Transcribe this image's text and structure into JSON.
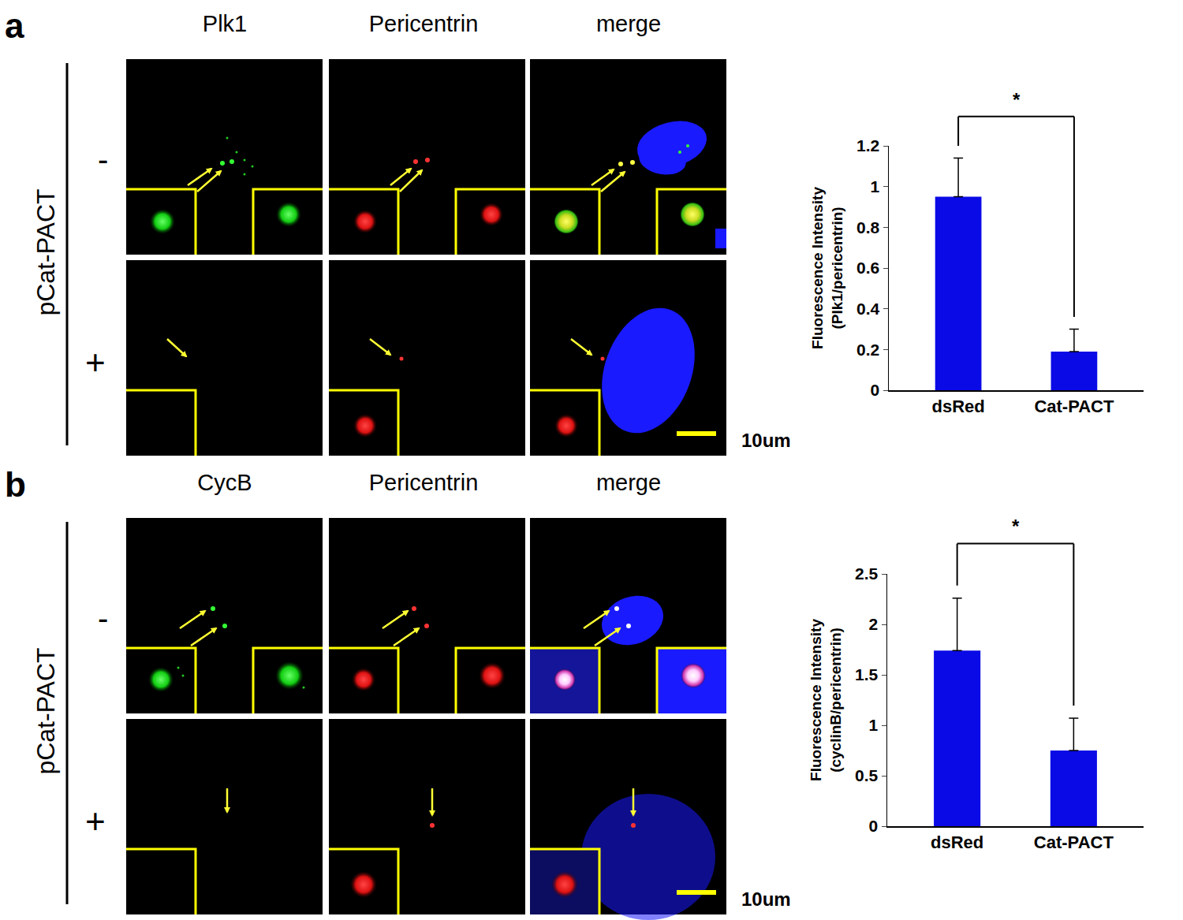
{
  "figure": {
    "panels": [
      {
        "label": "a",
        "columns": [
          "Plk1",
          "Pericentrin",
          "merge"
        ],
        "row_group": "pCat-PACT",
        "rows": [
          "-",
          "+"
        ],
        "scale_bar": "10um"
      },
      {
        "label": "b",
        "columns": [
          "CycB",
          "Pericentrin",
          "merge"
        ],
        "row_group": "pCat-PACT",
        "rows": [
          "-",
          "+"
        ],
        "scale_bar": "10um"
      }
    ]
  },
  "chart_data": [
    {
      "type": "bar",
      "y_label": "Fluorescence Intensity\n(Plk1/pericentrin)",
      "categories": [
        "dsRed",
        "Cat-PACT"
      ],
      "values": [
        0.95,
        0.19
      ],
      "errors": [
        0.19,
        0.11
      ],
      "color": "#0a0ae6",
      "ylim": [
        0,
        1.2
      ],
      "yticks": [
        0,
        0.2,
        0.4,
        0.6,
        0.8,
        1,
        1.2
      ],
      "grid": false,
      "significance": "*"
    },
    {
      "type": "bar",
      "y_label": "Fluorescence Intensity\n(cyclinB/pericentrin)",
      "categories": [
        "dsRed",
        "Cat-PACT"
      ],
      "values": [
        1.74,
        0.75
      ],
      "errors": [
        0.52,
        0.32
      ],
      "color": "#0a0ae6",
      "ylim": [
        0,
        2.5
      ],
      "yticks": [
        0,
        0.5,
        1,
        1.5,
        2,
        2.5
      ],
      "grid": false,
      "significance": "*"
    }
  ]
}
